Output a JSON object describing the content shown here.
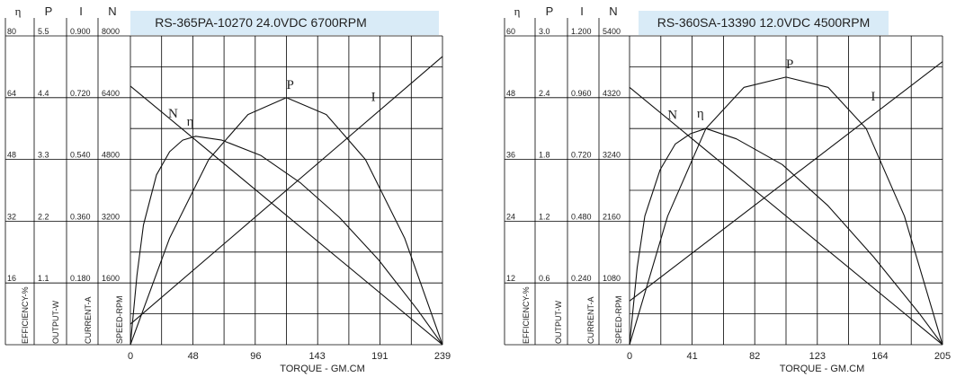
{
  "chart_data": [
    {
      "type": "line",
      "title": "RS-365PA-10270    24.0VDC    6700RPM",
      "xlabel": "TORQUE - GM.CM",
      "x_ticks": [
        0,
        48,
        96,
        143,
        191,
        239
      ],
      "xlim": [
        0,
        239
      ],
      "header_labels": [
        "η",
        "P",
        "I",
        "N"
      ],
      "axis_labels": [
        "EFFICIENCY-%",
        "OUTPUT-W",
        "CURRENT-A",
        "SPEED-RPM"
      ],
      "scale_columns": [
        {
          "name": "EFFICIENCY",
          "values": [
            "80",
            "64",
            "48",
            "32",
            "16"
          ]
        },
        {
          "name": "OUTPUT",
          "values": [
            "5.5",
            "4.4",
            "3.3",
            "2.2",
            "1.1"
          ]
        },
        {
          "name": "CURRENT",
          "values": [
            "0.900",
            "0.720",
            "0.540",
            "0.360",
            "0.180"
          ]
        },
        {
          "name": "SPEED",
          "values": [
            "8000",
            "6400",
            "4800",
            "3200",
            "1600"
          ]
        }
      ],
      "grid": true,
      "series": [
        {
          "name": "N",
          "scale": "SPEED",
          "ymax": 8000,
          "x": [
            0,
            239
          ],
          "y": [
            6700,
            0
          ]
        },
        {
          "name": "I",
          "scale": "CURRENT",
          "ymax": 0.9,
          "x": [
            0,
            239
          ],
          "y": [
            0.06,
            0.84
          ]
        },
        {
          "name": "P",
          "scale": "OUTPUT",
          "ymax": 5.5,
          "x": [
            0,
            30,
            60,
            90,
            119.5,
            150,
            180,
            210,
            239
          ],
          "y": [
            0,
            1.9,
            3.3,
            4.1,
            4.4,
            4.1,
            3.3,
            1.9,
            0
          ]
        },
        {
          "name": "η",
          "scale": "EFFICIENCY",
          "ymax": 80,
          "x": [
            0,
            5,
            10,
            20,
            30,
            40,
            50,
            70,
            100,
            130,
            160,
            190,
            220,
            239
          ],
          "y": [
            0,
            18,
            31,
            44,
            50,
            53,
            54,
            53,
            49,
            42,
            33,
            22,
            9,
            0
          ]
        }
      ],
      "curve_labels": [
        "N",
        "η",
        "P",
        "I"
      ]
    },
    {
      "type": "line",
      "title": "RS-360SA-13390    12.0VDC    4500RPM",
      "xlabel": "TORQUE - GM.CM",
      "x_ticks": [
        0,
        41,
        82,
        123,
        164,
        205
      ],
      "xlim": [
        0,
        205
      ],
      "header_labels": [
        "η",
        "P",
        "I",
        "N"
      ],
      "axis_labels": [
        "EFFICIENCY-%",
        "OUTPUT-W",
        "CURRENT-A",
        "SPEED-RPM"
      ],
      "scale_columns": [
        {
          "name": "EFFICIENCY",
          "values": [
            "60",
            "48",
            "36",
            "24",
            "12"
          ]
        },
        {
          "name": "OUTPUT",
          "values": [
            "3.0",
            "2.4",
            "1.8",
            "1.2",
            "0.6"
          ]
        },
        {
          "name": "CURRENT",
          "values": [
            "1.200",
            "0.960",
            "0.720",
            "0.480",
            "0.240"
          ]
        },
        {
          "name": "SPEED",
          "values": [
            "5400",
            "4320",
            "3240",
            "2160",
            "1080"
          ]
        }
      ],
      "grid": true,
      "series": [
        {
          "name": "N",
          "scale": "SPEED",
          "ymax": 5400,
          "x": [
            0,
            205
          ],
          "y": [
            4500,
            0
          ]
        },
        {
          "name": "I",
          "scale": "CURRENT",
          "ymax": 1.2,
          "x": [
            0,
            205
          ],
          "y": [
            0.17,
            1.1
          ]
        },
        {
          "name": "P",
          "scale": "OUTPUT",
          "ymax": 3.0,
          "x": [
            0,
            25,
            50,
            75,
            102.5,
            130,
            155,
            180,
            205
          ],
          "y": [
            0,
            1.25,
            2.1,
            2.5,
            2.6,
            2.5,
            2.1,
            1.25,
            0
          ]
        },
        {
          "name": "η",
          "scale": "EFFICIENCY",
          "ymax": 60,
          "x": [
            0,
            5,
            10,
            20,
            30,
            40,
            50,
            70,
            100,
            130,
            160,
            190,
            205
          ],
          "y": [
            0,
            15,
            25,
            34,
            39,
            41,
            42,
            40,
            35,
            27,
            17,
            6,
            0
          ]
        }
      ],
      "curve_labels": [
        "N",
        "η",
        "P",
        "I"
      ]
    }
  ]
}
